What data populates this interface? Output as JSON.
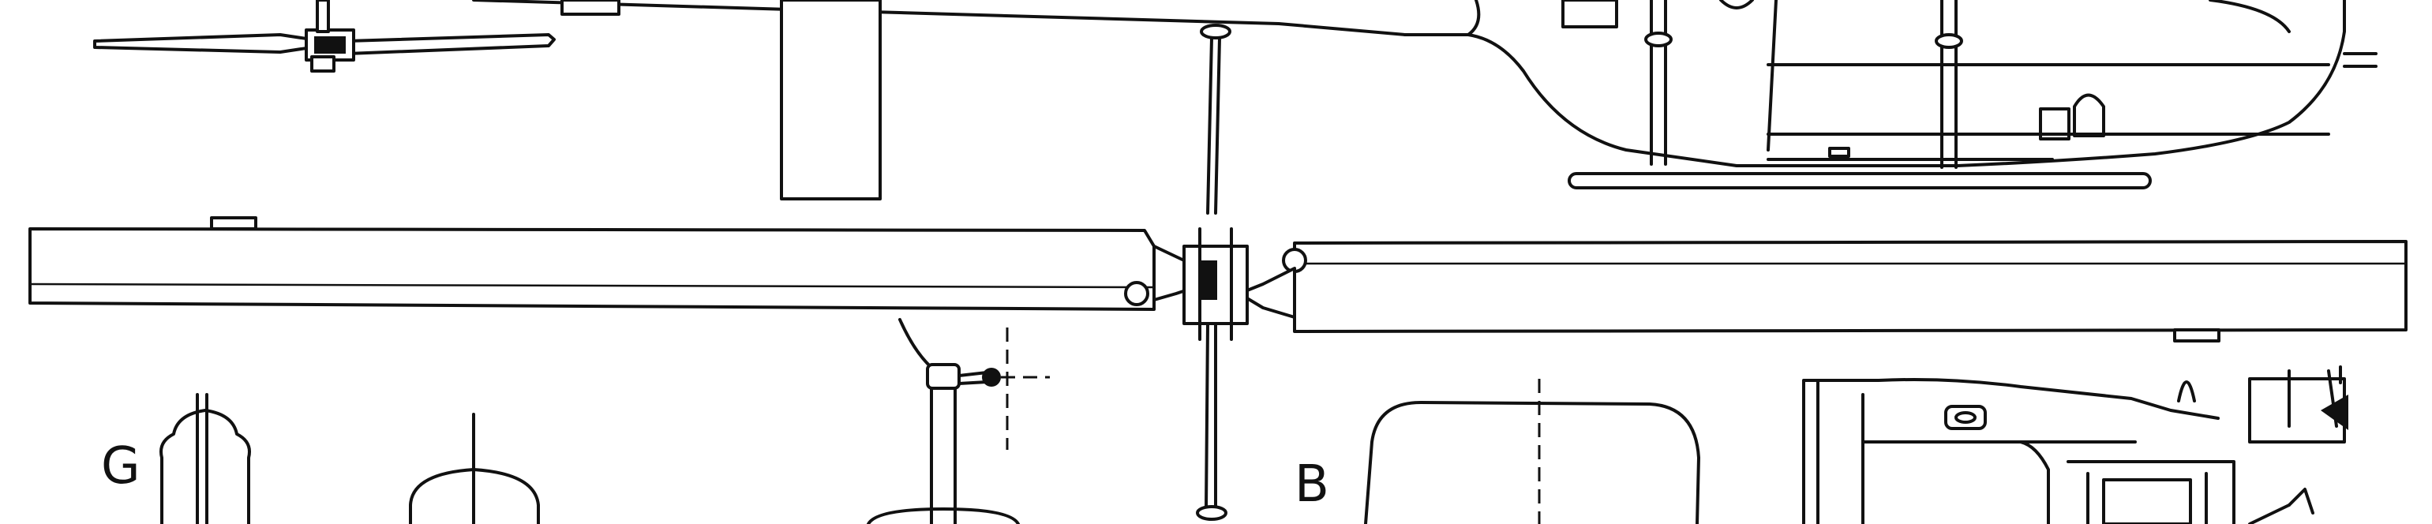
{
  "view_labels": {
    "g": "G",
    "b": "B"
  }
}
